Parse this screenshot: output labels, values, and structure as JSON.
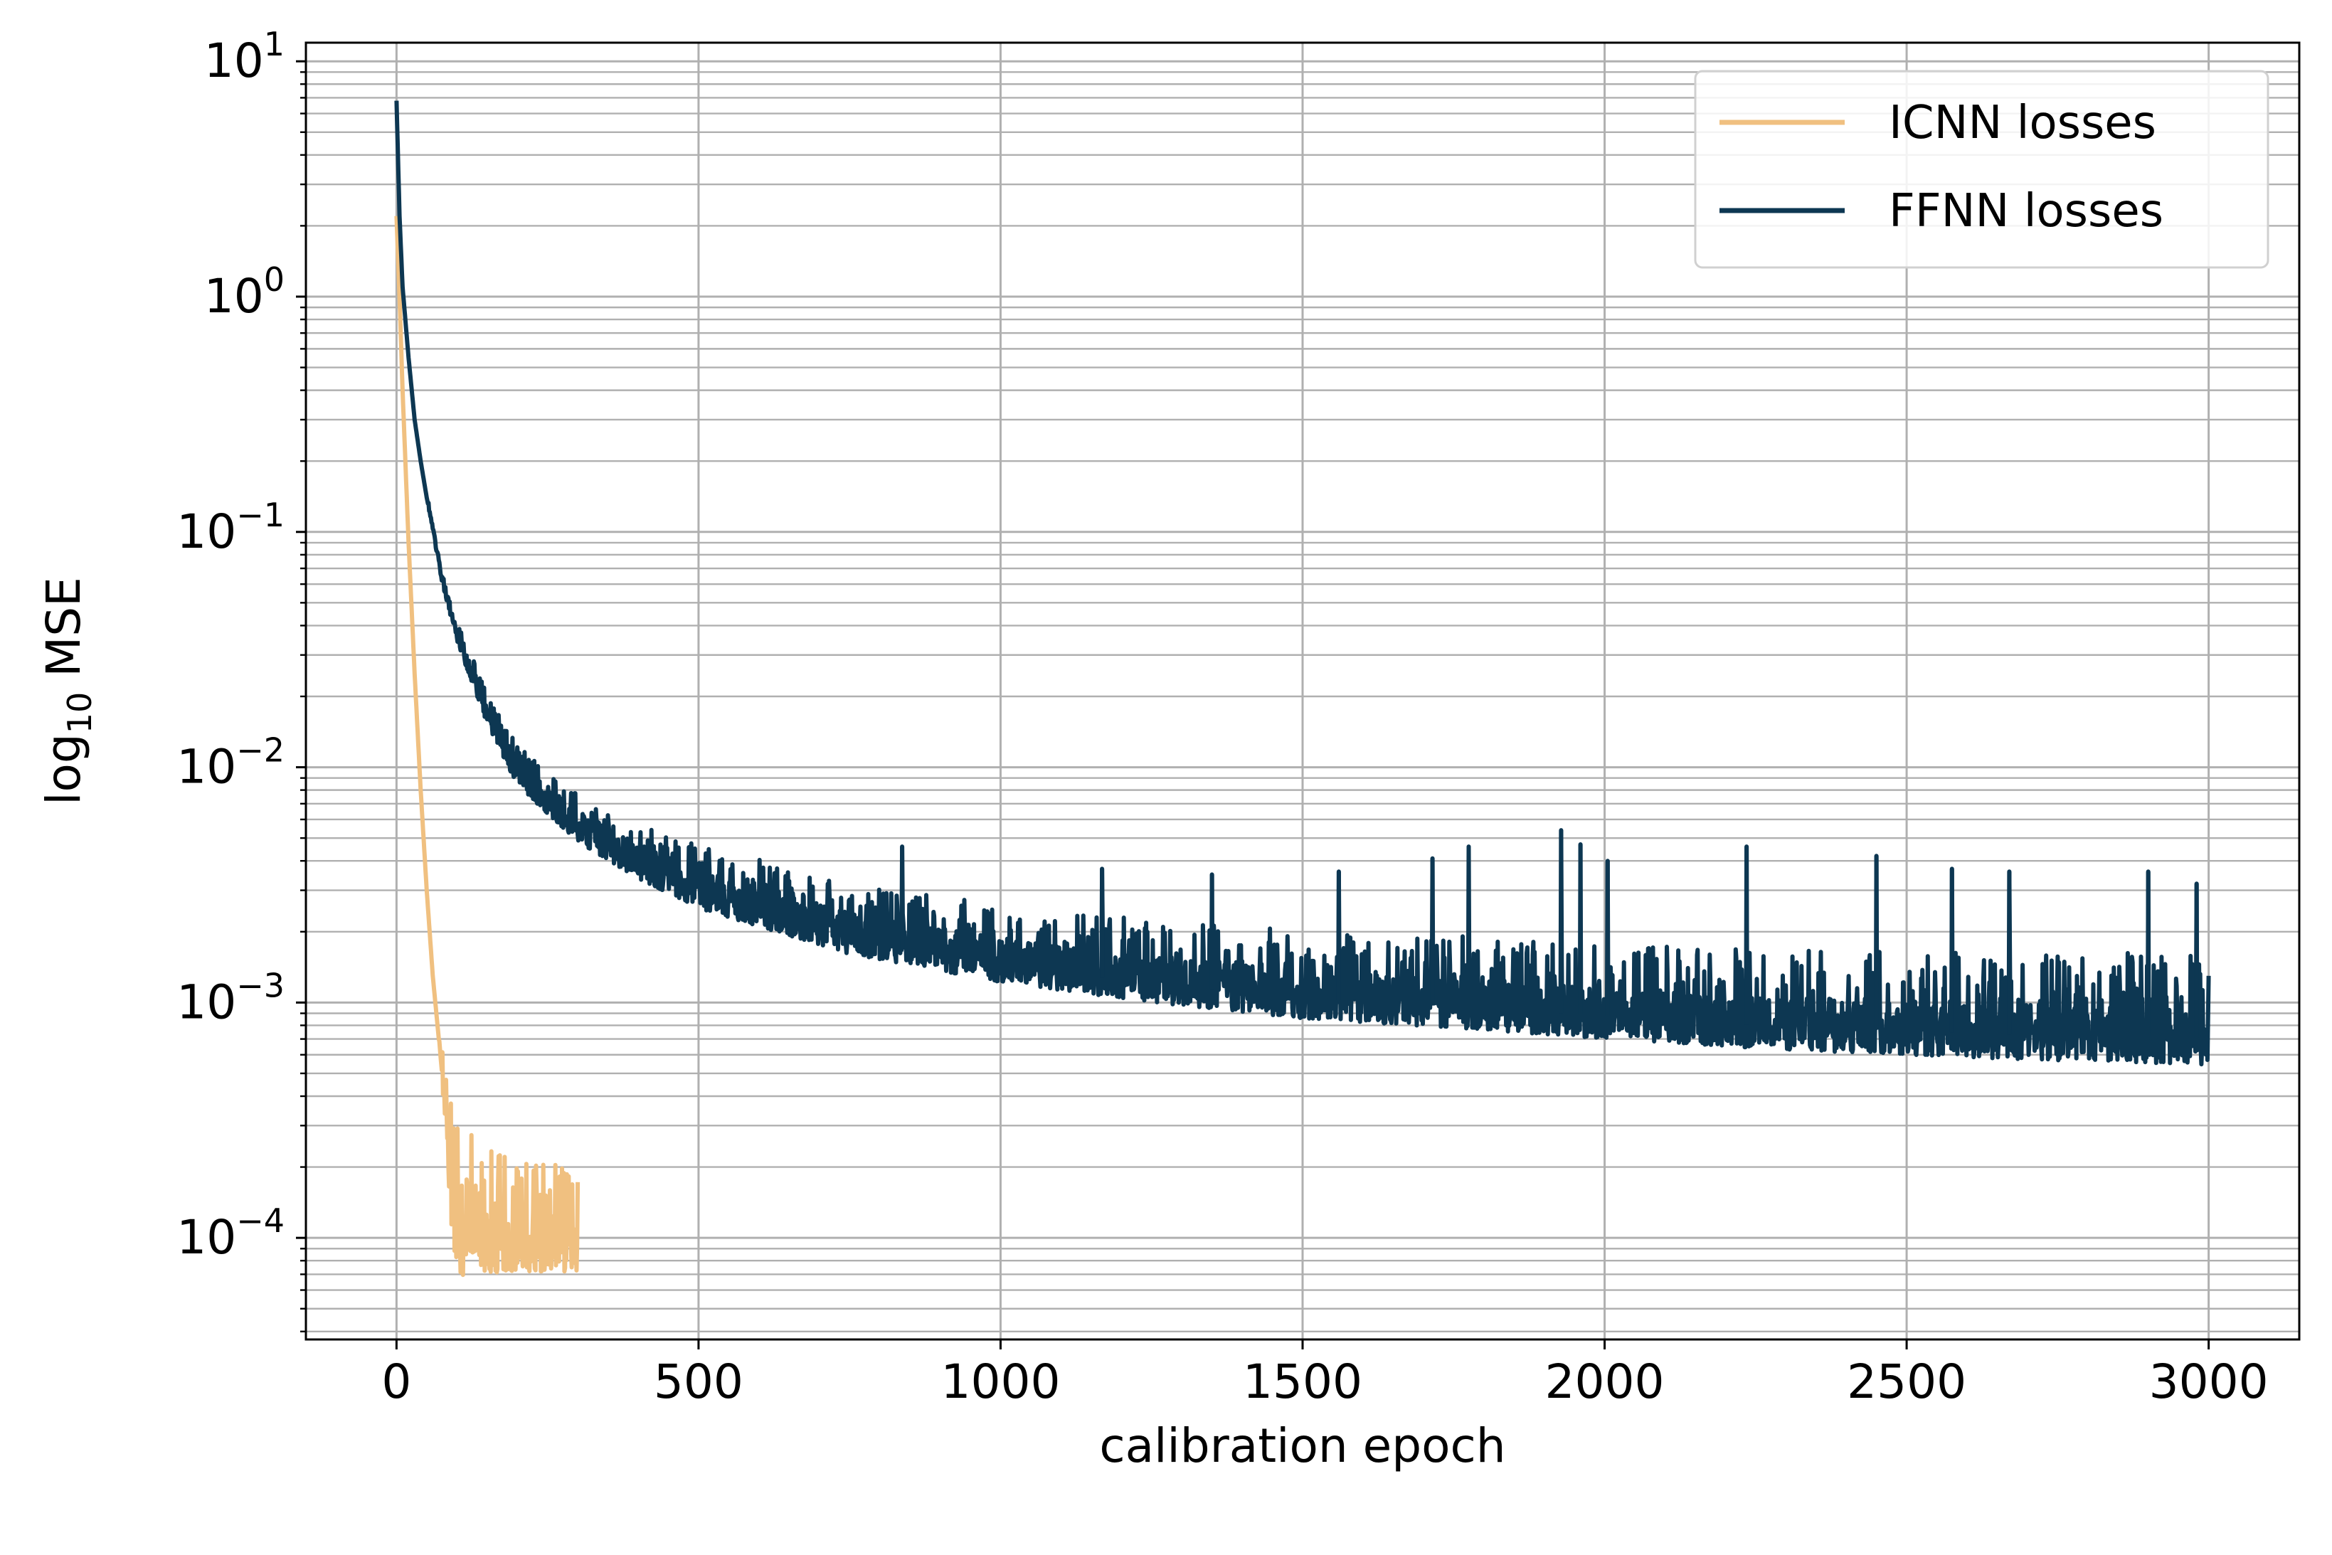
{
  "chart_data": {
    "type": "line",
    "title": "",
    "xlabel": "calibration epoch",
    "ylabel": {
      "prefix": "log",
      "subscript": "10",
      "suffix": " MSE"
    },
    "xlim": [
      -150,
      3150
    ],
    "ylim": [
      3.7e-05,
      12
    ],
    "yscale": "log",
    "grid": {
      "major": true,
      "minor_y": true
    },
    "legend_position": "top-right",
    "x_ticks": [
      0,
      500,
      1000,
      1500,
      2000,
      2500,
      3000
    ],
    "x_tick_labels": [
      "0",
      "500",
      "1000",
      "1500",
      "2000",
      "2500",
      "3000"
    ],
    "y_ticks": [
      {
        "value": 10,
        "base": "10",
        "exp": "1"
      },
      {
        "value": 1,
        "base": "10",
        "exp": "0"
      },
      {
        "value": 0.1,
        "base": "10",
        "exp": "−1"
      },
      {
        "value": 0.01,
        "base": "10",
        "exp": "−2"
      },
      {
        "value": 0.001,
        "base": "10",
        "exp": "−3"
      },
      {
        "value": 0.0001,
        "base": "10",
        "exp": "−4"
      }
    ],
    "series": [
      {
        "name": "ICNN losses",
        "color": "#f0c080",
        "x": [
          0,
          5,
          10,
          20,
          30,
          40,
          50,
          60,
          70,
          80,
          90,
          100,
          110,
          120,
          130,
          140,
          150,
          175,
          200,
          225,
          250,
          275,
          300
        ],
        "y": [
          2.2,
          1.0,
          0.4,
          0.09,
          0.025,
          0.008,
          0.003,
          0.0013,
          0.0007,
          0.0004,
          0.00022,
          0.00013,
          0.00011,
          0.00011,
          0.00011,
          0.0001,
          0.0001,
          0.0001,
          0.0001,
          0.0001,
          0.0001,
          0.0001,
          0.0001
        ],
        "noise_low": [
          1.0,
          1.0,
          1.0,
          1.0,
          1.0,
          1.0,
          1.0,
          1.0,
          1.0,
          0.8,
          0.55,
          0.5,
          0.6,
          0.65,
          0.65,
          0.7,
          0.7,
          0.72,
          0.72,
          0.72,
          0.72,
          0.72,
          0.72
        ],
        "noise_high": [
          1.0,
          1.0,
          1.0,
          1.0,
          1.0,
          1.0,
          1.0,
          1.0,
          1.0,
          1.5,
          1.7,
          2.4,
          3.0,
          3.0,
          2.8,
          2.5,
          2.4,
          2.3,
          2.2,
          2.2,
          2.1,
          2.0,
          1.9
        ]
      },
      {
        "name": "FFNN losses",
        "color": "#0d3752",
        "x": [
          0,
          5,
          10,
          20,
          30,
          40,
          50,
          75,
          100,
          150,
          200,
          300,
          400,
          500,
          750,
          1000,
          1250,
          1500,
          1750,
          2000,
          2250,
          2500,
          2750,
          3000
        ],
        "y": [
          6.8,
          2.2,
          1.1,
          0.55,
          0.3,
          0.2,
          0.14,
          0.065,
          0.038,
          0.018,
          0.0105,
          0.0062,
          0.0045,
          0.0035,
          0.0023,
          0.0018,
          0.0015,
          0.0013,
          0.0012,
          0.0011,
          0.001,
          0.00095,
          0.0009,
          0.00088
        ],
        "noise_low": [
          1.0,
          1.0,
          1.0,
          1.0,
          1.0,
          1.0,
          1.0,
          0.95,
          0.9,
          0.85,
          0.8,
          0.78,
          0.75,
          0.72,
          0.7,
          0.68,
          0.67,
          0.66,
          0.65,
          0.64,
          0.64,
          0.63,
          0.63,
          0.62
        ],
        "noise_high": [
          1.0,
          1.0,
          1.0,
          1.0,
          1.0,
          1.0,
          1.0,
          1.05,
          1.1,
          1.15,
          1.2,
          1.25,
          1.3,
          1.35,
          1.4,
          1.45,
          1.5,
          1.55,
          1.6,
          1.65,
          1.7,
          1.75,
          1.8,
          1.85
        ],
        "spikes": [
          {
            "x": 837,
            "y": 0.0046
          },
          {
            "x": 1168,
            "y": 0.0037
          },
          {
            "x": 1350,
            "y": 0.0035
          },
          {
            "x": 1560,
            "y": 0.0036
          },
          {
            "x": 1715,
            "y": 0.0041
          },
          {
            "x": 1775,
            "y": 0.0046
          },
          {
            "x": 1928,
            "y": 0.0054
          },
          {
            "x": 1960,
            "y": 0.0047
          },
          {
            "x": 2005,
            "y": 0.004
          },
          {
            "x": 2235,
            "y": 0.0046
          },
          {
            "x": 2450,
            "y": 0.0042
          },
          {
            "x": 2575,
            "y": 0.0037
          },
          {
            "x": 2670,
            "y": 0.0036
          },
          {
            "x": 2900,
            "y": 0.0036
          },
          {
            "x": 2980,
            "y": 0.0032
          }
        ]
      }
    ]
  }
}
